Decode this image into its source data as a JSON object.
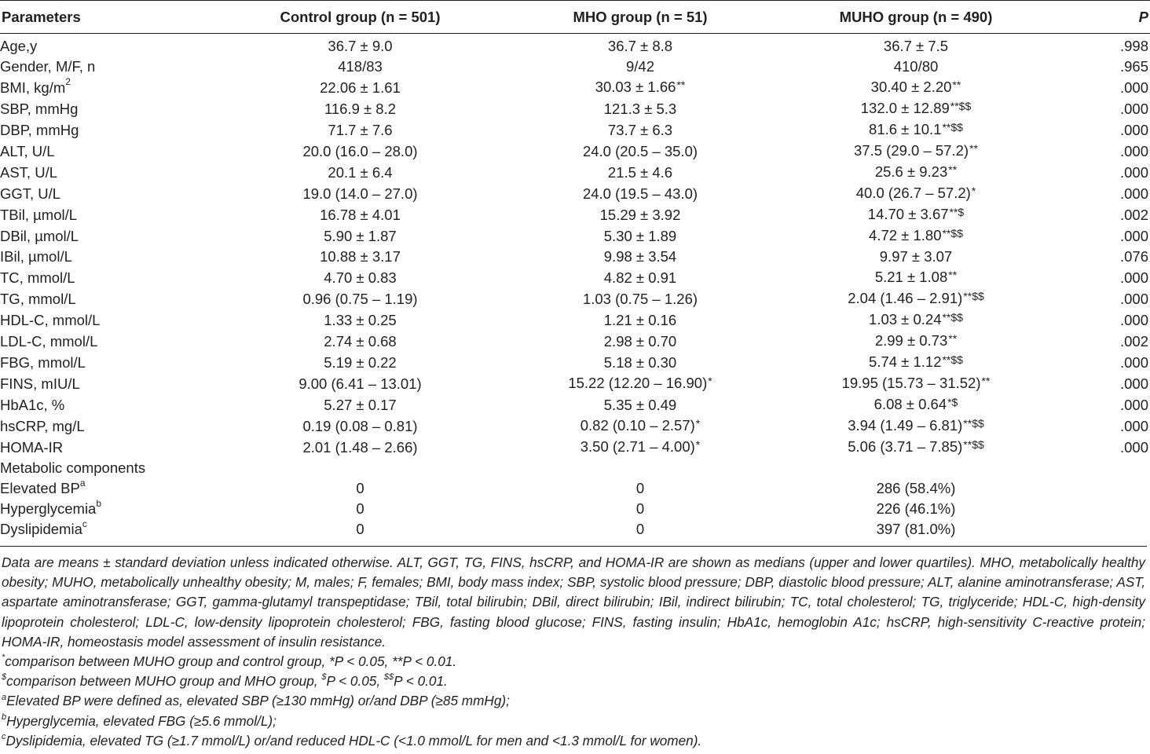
{
  "table": {
    "headers": [
      "Parameters",
      "Control group (n = 501)",
      "MHO group (n = 51)",
      "MUHO group (n = 490)",
      "P"
    ],
    "rows": [
      {
        "param": "Age,y",
        "control": "36.7 ± 9.0",
        "mho": "36.7 ± 8.8",
        "muho": "36.7 ± 7.5",
        "muho_sig": "",
        "p": ".998"
      },
      {
        "param": "Gender, M/F, n",
        "control": "418/83",
        "mho": "9/42",
        "muho": "410/80",
        "muho_sig": "",
        "p": ".965"
      },
      {
        "param": "BMI, kg/m",
        "param_sup": "2",
        "control": "22.06 ± 1.61",
        "mho": "30.03 ± 1.66",
        "mho_sig": "**",
        "muho": "30.40 ± 2.20",
        "muho_sig": "**",
        "p": ".000"
      },
      {
        "param": "SBP, mmHg",
        "control": "116.9 ± 8.2",
        "mho": "121.3 ± 5.3",
        "muho": "132.0 ± 12.89",
        "muho_sig": "**$$",
        "p": ".000"
      },
      {
        "param": "DBP, mmHg",
        "control": "71.7 ± 7.6",
        "mho": "73.7 ± 6.3",
        "muho": "81.6 ± 10.1",
        "muho_sig": "**$$",
        "p": ".000"
      },
      {
        "param": "ALT, U/L",
        "control": "20.0 (16.0 – 28.0)",
        "mho": "24.0 (20.5 – 35.0)",
        "muho": "37.5 (29.0 – 57.2)",
        "muho_sig": "**",
        "p": ".000"
      },
      {
        "param": "AST, U/L",
        "control": "20.1 ± 6.4",
        "mho": "21.5 ± 4.6",
        "muho": "25.6 ± 9.23",
        "muho_sig": "**",
        "p": ".000"
      },
      {
        "param": "GGT, U/L",
        "control": "19.0 (14.0 – 27.0)",
        "mho": "24.0 (19.5 – 43.0)",
        "muho": "40.0 (26.7 – 57.2)",
        "muho_sig": "*",
        "p": ".000"
      },
      {
        "param": "TBil, µmol/L",
        "control": "16.78 ± 4.01",
        "mho": "15.29 ± 3.92",
        "muho": "14.70 ± 3.67",
        "muho_sig": "**$",
        "p": ".002"
      },
      {
        "param": "DBil, µmol/L",
        "control": "5.90 ± 1.87",
        "mho": "5.30 ± 1.89",
        "muho": "4.72 ± 1.80",
        "muho_sig": "**$$",
        "p": ".000"
      },
      {
        "param": "IBil, µmol/L",
        "control": "10.88 ± 3.17",
        "mho": "9.98 ± 3.54",
        "muho": "9.97 ± 3.07",
        "muho_sig": "",
        "p": ".076"
      },
      {
        "param": "TC, mmol/L",
        "control": "4.70 ± 0.83",
        "mho": "4.82 ± 0.91",
        "muho": "5.21 ± 1.08",
        "muho_sig": "**",
        "p": ".000"
      },
      {
        "param": "TG, mmol/L",
        "control": "0.96 (0.75 – 1.19)",
        "mho": "1.03 (0.75 – 1.26)",
        "muho": "2.04 (1.46 – 2.91)",
        "muho_sig": "**$$",
        "p": ".000"
      },
      {
        "param": "HDL-C, mmol/L",
        "control": "1.33 ± 0.25",
        "mho": "1.21 ± 0.16",
        "muho": "1.03 ± 0.24",
        "muho_sig": "**$$",
        "p": ".000"
      },
      {
        "param": "LDL-C, mmol/L",
        "control": "2.74 ± 0.68",
        "mho": "2.98 ± 0.70",
        "muho": "2.99 ± 0.73",
        "muho_sig": "**",
        "p": ".002"
      },
      {
        "param": "FBG, mmol/L",
        "control": "5.19 ± 0.22",
        "mho": "5.18 ± 0.30",
        "muho": "5.74 ± 1.12",
        "muho_sig": "**$$",
        "p": ".000"
      },
      {
        "param": "FINS, mIU/L",
        "control": "9.00 (6.41 – 13.01)",
        "mho": "15.22 (12.20 – 16.90)",
        "mho_sig": "*",
        "muho": "19.95 (15.73 – 31.52)",
        "muho_sig": "**",
        "p": ".000"
      },
      {
        "param": "HbA1c, %",
        "control": "5.27 ± 0.17",
        "mho": "5.35 ± 0.49",
        "muho": "6.08 ± 0.64",
        "muho_sig": "*$",
        "p": ".000"
      },
      {
        "param": "hsCRP, mg/L",
        "control": "0.19 (0.08 – 0.81)",
        "mho": "0.82 (0.10 – 2.57)",
        "mho_sig": "*",
        "muho": "3.94 (1.49 – 6.81)",
        "muho_sig": "**$$",
        "p": ".000"
      },
      {
        "param": "HOMA-IR",
        "control": "2.01 (1.48 – 2.66)",
        "mho": "3.50 (2.71 – 4.00)",
        "mho_sig": "*",
        "muho": "5.06 (3.71 – 7.85)",
        "muho_sig": "**$$",
        "p": ".000"
      },
      {
        "param": "Metabolic components",
        "control": "",
        "mho": "",
        "muho": "",
        "muho_sig": "",
        "p": ""
      },
      {
        "param": "Elevated BP",
        "param_sup": "a",
        "control": "0",
        "mho": "0",
        "muho": "286 (58.4%)",
        "muho_sig": "",
        "p": ""
      },
      {
        "param": "Hyperglycemia",
        "param_sup": "b",
        "control": "0",
        "mho": "0",
        "muho": "226 (46.1%)",
        "muho_sig": "",
        "p": ""
      },
      {
        "param": "Dyslipidemia",
        "param_sup": "c",
        "control": "0",
        "mho": "0",
        "muho": "397 (81.0%)",
        "muho_sig": "",
        "p": ""
      }
    ]
  },
  "footnotes": {
    "main": "Data are means ± standard deviation unless indicated otherwise. ALT, GGT, TG, FINS, hsCRP, and HOMA-IR are shown as medians (upper and lower quartiles). MHO, metabolically healthy obesity; MUHO, metabolically unhealthy obesity; M, males; F, females; BMI, body mass index; SBP, systolic blood pressure; DBP, diastolic blood pressure; ALT, alanine aminotransferase; AST, aspartate aminotransferase; GGT, gamma-glutamyl transpeptidase; TBil, total bilirubin; DBil, direct bilirubin; IBil, indirect bilirubin; TC, total cholesterol; TG, triglyceride; HDL-C, high-density lipoprotein cholesterol; LDL-C, low-density lipoprotein cholesterol; FBG, fasting blood glucose; FINS, fasting insulin; HbA1c, hemoglobin A1c; hsCRP, high-sensitivity C-reactive protein; HOMA-IR, homeostasis model assessment of insulin resistance.",
    "star": {
      "mark": "*",
      "text": "comparison between MUHO group and control group, *P < 0.05, **P < 0.01."
    },
    "dollar": {
      "mark": "$",
      "text_a": "comparison between MUHO group and MHO group, ",
      "sup1": "$",
      "text_b": "P < 0.05, ",
      "sup2": "$$",
      "text_c": "P < 0.01."
    },
    "a": {
      "mark": "a",
      "text": "Elevated BP were defined as, elevated SBP (≥130 mmHg) or/and DBP (≥85 mmHg);"
    },
    "b": {
      "mark": "b",
      "text": "Hyperglycemia, elevated FBG (≥5.6 mmol/L);"
    },
    "c": {
      "mark": "c",
      "text": "Dyslipidemia, elevated TG (≥1.7 mmol/L) or/and reduced HDL-C (<1.0 mmol/L for men and <1.3 mmol/L for women)."
    }
  }
}
